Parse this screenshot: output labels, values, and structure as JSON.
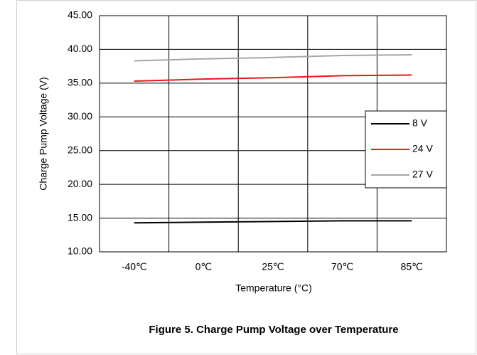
{
  "chart_data": {
    "type": "line",
    "title": "Figure 5. Charge Pump Voltage over Temperature",
    "xlabel": "Temperature (°C)",
    "ylabel": "Charge Pump Voltage (V)",
    "categories": [
      "-40℃",
      "0℃",
      "25℃",
      "70℃",
      "85℃"
    ],
    "series": [
      {
        "name": "8 V",
        "color": "#000000",
        "values": [
          14.3,
          14.4,
          14.5,
          14.6,
          14.6
        ]
      },
      {
        "name": "24 V",
        "color": "#e8181c",
        "values": [
          35.3,
          35.6,
          35.8,
          36.1,
          36.2
        ]
      },
      {
        "name": "27 V",
        "color": "#a6a6a6",
        "values": [
          38.3,
          38.6,
          38.8,
          39.1,
          39.2
        ]
      }
    ],
    "ylim": [
      10,
      45
    ],
    "yticks": [
      {
        "value": 10,
        "label": "10.00"
      },
      {
        "value": 15,
        "label": "15.00"
      },
      {
        "value": 20,
        "label": "20.00"
      },
      {
        "value": 25,
        "label": "25.00"
      },
      {
        "value": 30,
        "label": "30.00"
      },
      {
        "value": 35,
        "label": "35.00"
      },
      {
        "value": 40,
        "label": "40.00"
      },
      {
        "value": 45,
        "label": "45.00"
      }
    ],
    "grid": true,
    "legend": "right"
  }
}
